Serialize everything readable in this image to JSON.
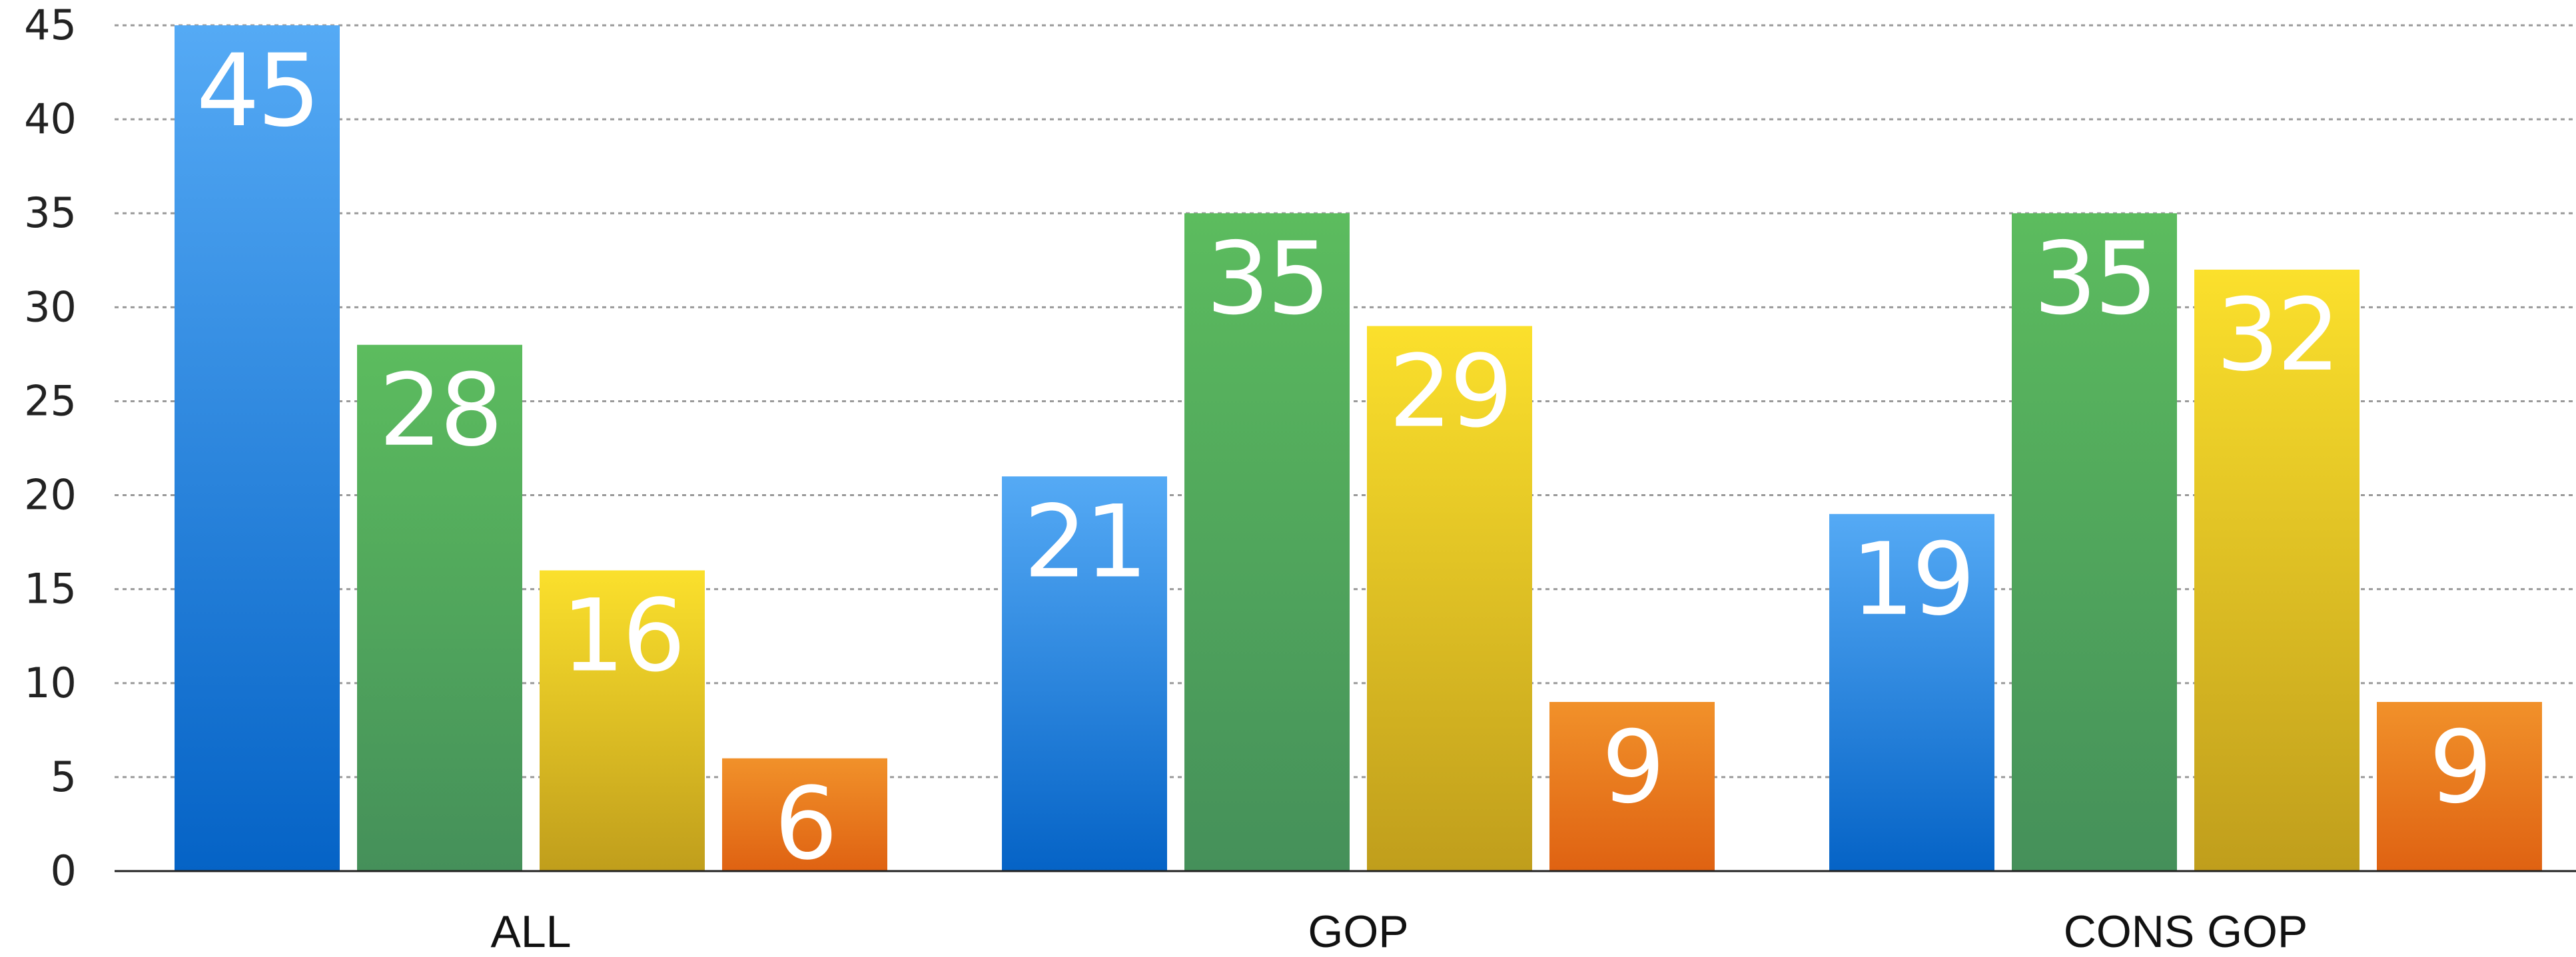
{
  "chart_data": {
    "type": "bar",
    "title": "",
    "xlabel": "",
    "ylabel": "",
    "categories": [
      "ALL",
      "GOP",
      "CONS GOP"
    ],
    "series": [
      {
        "color": "#1f77d4",
        "values": [
          45,
          21,
          19
        ]
      },
      {
        "color": "#4fa85a",
        "values": [
          28,
          35,
          35
        ]
      },
      {
        "color": "#e3c21c",
        "values": [
          16,
          29,
          32
        ]
      },
      {
        "color": "#e8741b",
        "values": [
          6,
          9,
          9
        ]
      }
    ],
    "ylim": [
      0,
      45
    ],
    "yticks": [
      "0",
      "5",
      "10",
      "15",
      "20",
      "25",
      "30",
      "35",
      "40",
      "45"
    ],
    "grid": true,
    "legend": "none",
    "data_labels": true
  }
}
